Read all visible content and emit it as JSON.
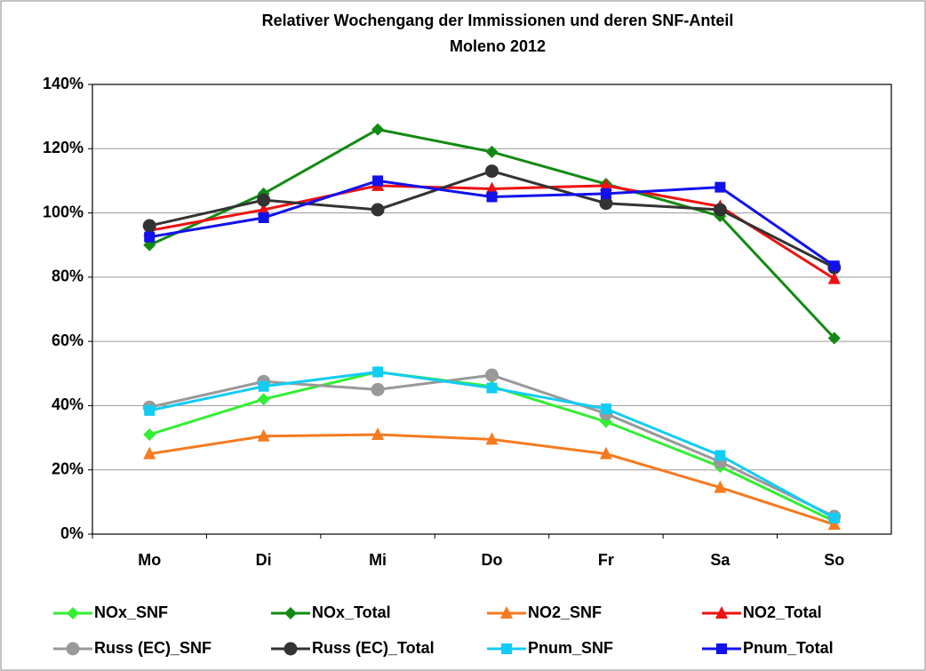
{
  "chart_data": {
    "type": "line",
    "title": "Relativer Wochengang der Immissionen und deren SNF-Anteil",
    "subtitle": "Moleno 2012",
    "categories": [
      "Mo",
      "Di",
      "Mi",
      "Do",
      "Fr",
      "Sa",
      "So"
    ],
    "ylim": [
      0,
      140
    ],
    "yticks": [
      {
        "value": 0,
        "label": "0%"
      },
      {
        "value": 20,
        "label": "20%"
      },
      {
        "value": 40,
        "label": "40%"
      },
      {
        "value": 60,
        "label": "60%"
      },
      {
        "value": 80,
        "label": "80%"
      },
      {
        "value": 100,
        "label": "100%"
      },
      {
        "value": 120,
        "label": "120%"
      },
      {
        "value": 140,
        "label": "140%"
      }
    ],
    "grid": true,
    "legend": "bottom",
    "series": [
      {
        "name": "NOx_SNF",
        "color": "#33ee33",
        "marker": "diamond",
        "values": [
          31,
          42,
          50.5,
          46,
          35,
          21,
          4
        ]
      },
      {
        "name": "NOx_Total",
        "color": "#138a13",
        "marker": "diamond",
        "values": [
          90,
          106,
          126,
          119,
          109,
          99,
          61
        ]
      },
      {
        "name": "NO2_SNF",
        "color": "#f57a20",
        "marker": "triangle",
        "values": [
          25,
          30.5,
          31,
          29.5,
          25,
          14.5,
          3
        ]
      },
      {
        "name": "NO2_Total",
        "color": "#ee1111",
        "marker": "triangle",
        "values": [
          94.5,
          101,
          108.5,
          107.5,
          108.5,
          102,
          79.5
        ]
      },
      {
        "name": "Russ (EC)_SNF",
        "color": "#999999",
        "marker": "circle",
        "values": [
          39.5,
          47.5,
          45,
          49.5,
          37.5,
          22.5,
          5.5
        ]
      },
      {
        "name": "Russ (EC)_Total",
        "color": "#333333",
        "marker": "circle",
        "values": [
          96,
          104,
          101,
          113,
          103,
          101,
          83
        ]
      },
      {
        "name": "Pnum_SNF",
        "color": "#11ccf5",
        "marker": "square",
        "values": [
          38.5,
          46,
          50.5,
          45.5,
          39,
          24.5,
          5
        ]
      },
      {
        "name": "Pnum_Total",
        "color": "#1111ee",
        "marker": "square",
        "values": [
          92.5,
          98.5,
          110,
          105,
          106,
          108,
          83.5
        ]
      }
    ]
  }
}
